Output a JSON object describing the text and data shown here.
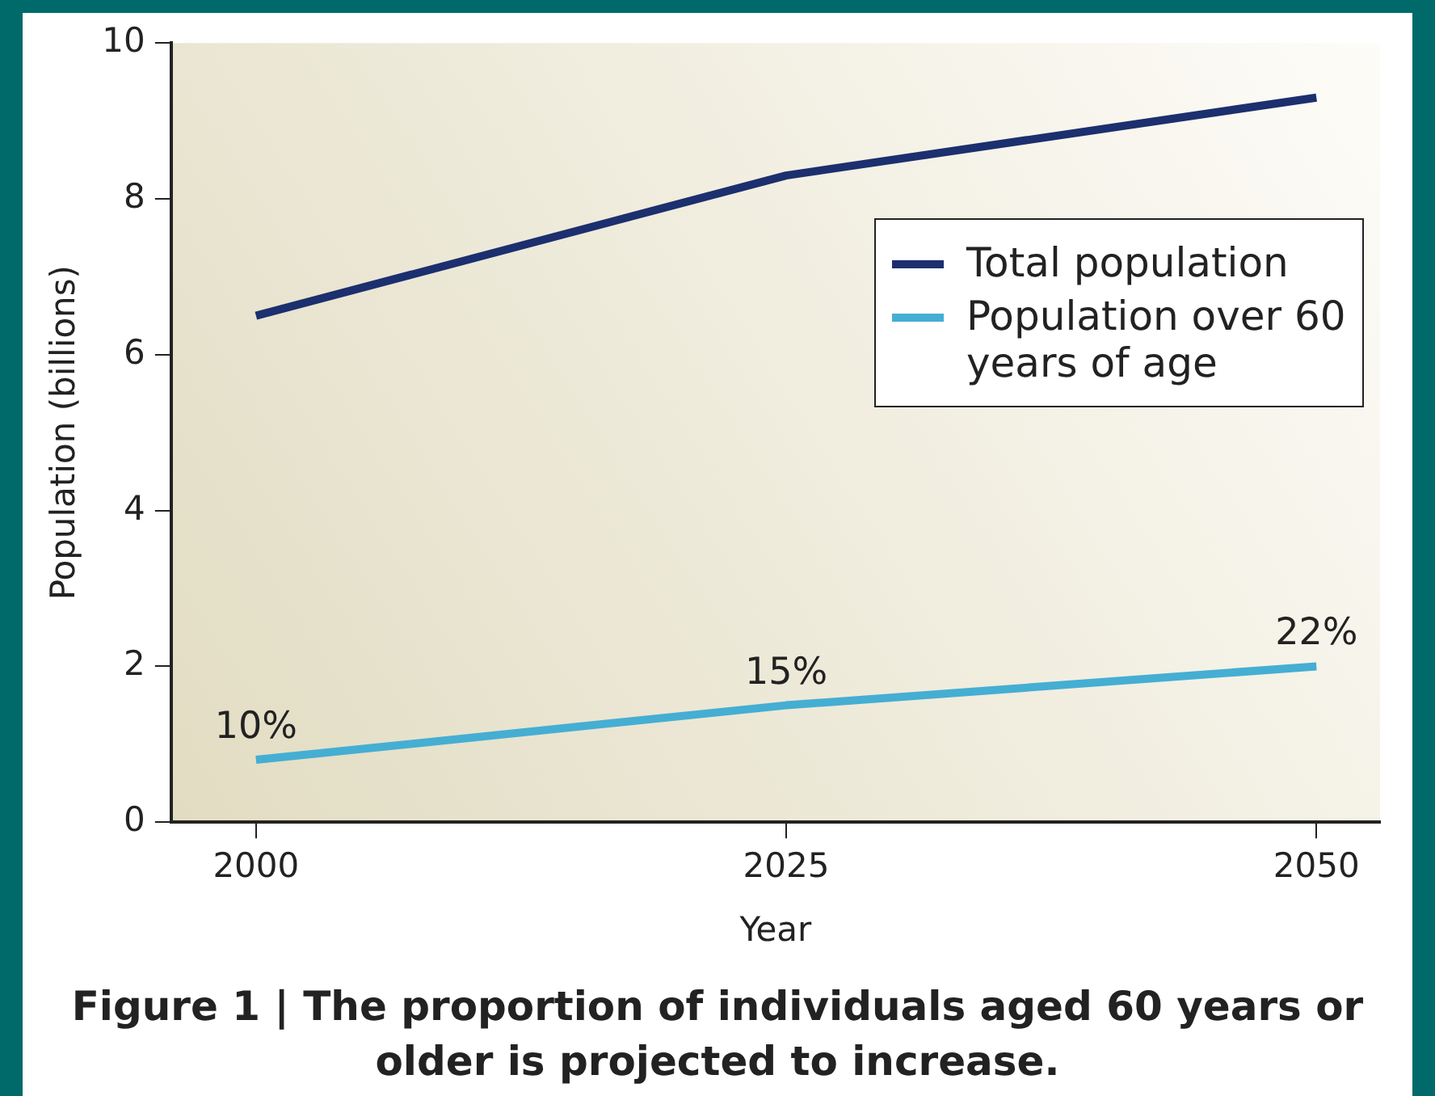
{
  "chart_data": {
    "type": "line",
    "xlabel": "Year",
    "ylabel": "Population (billions)",
    "x": [
      2000,
      2025,
      2050
    ],
    "series": [
      {
        "name": "Total population",
        "color": "#1c2f6e",
        "values": [
          6.5,
          8.3,
          9.3
        ]
      },
      {
        "name": "Population over 60 years of age",
        "color": "#45aed3",
        "values": [
          0.8,
          1.5,
          2.0
        ]
      }
    ],
    "xlim": [
      1996,
      2053
    ],
    "xticks": [
      2000,
      2025,
      2050
    ],
    "ylim": [
      0,
      10
    ],
    "yticks": [
      0,
      2,
      4,
      6,
      8,
      10
    ],
    "grid": false,
    "legend": "top right",
    "marker": "none",
    "annotations": [
      {
        "text": "10%",
        "x": 2000,
        "y": 0.8
      },
      {
        "text": "15%",
        "x": 2025,
        "y": 1.5
      },
      {
        "text": "22%",
        "x": 2050,
        "y": 2.0
      },
      "Figure 1 | The proportion of individuals aged 60 years or older is projected to increase."
    ]
  }
}
